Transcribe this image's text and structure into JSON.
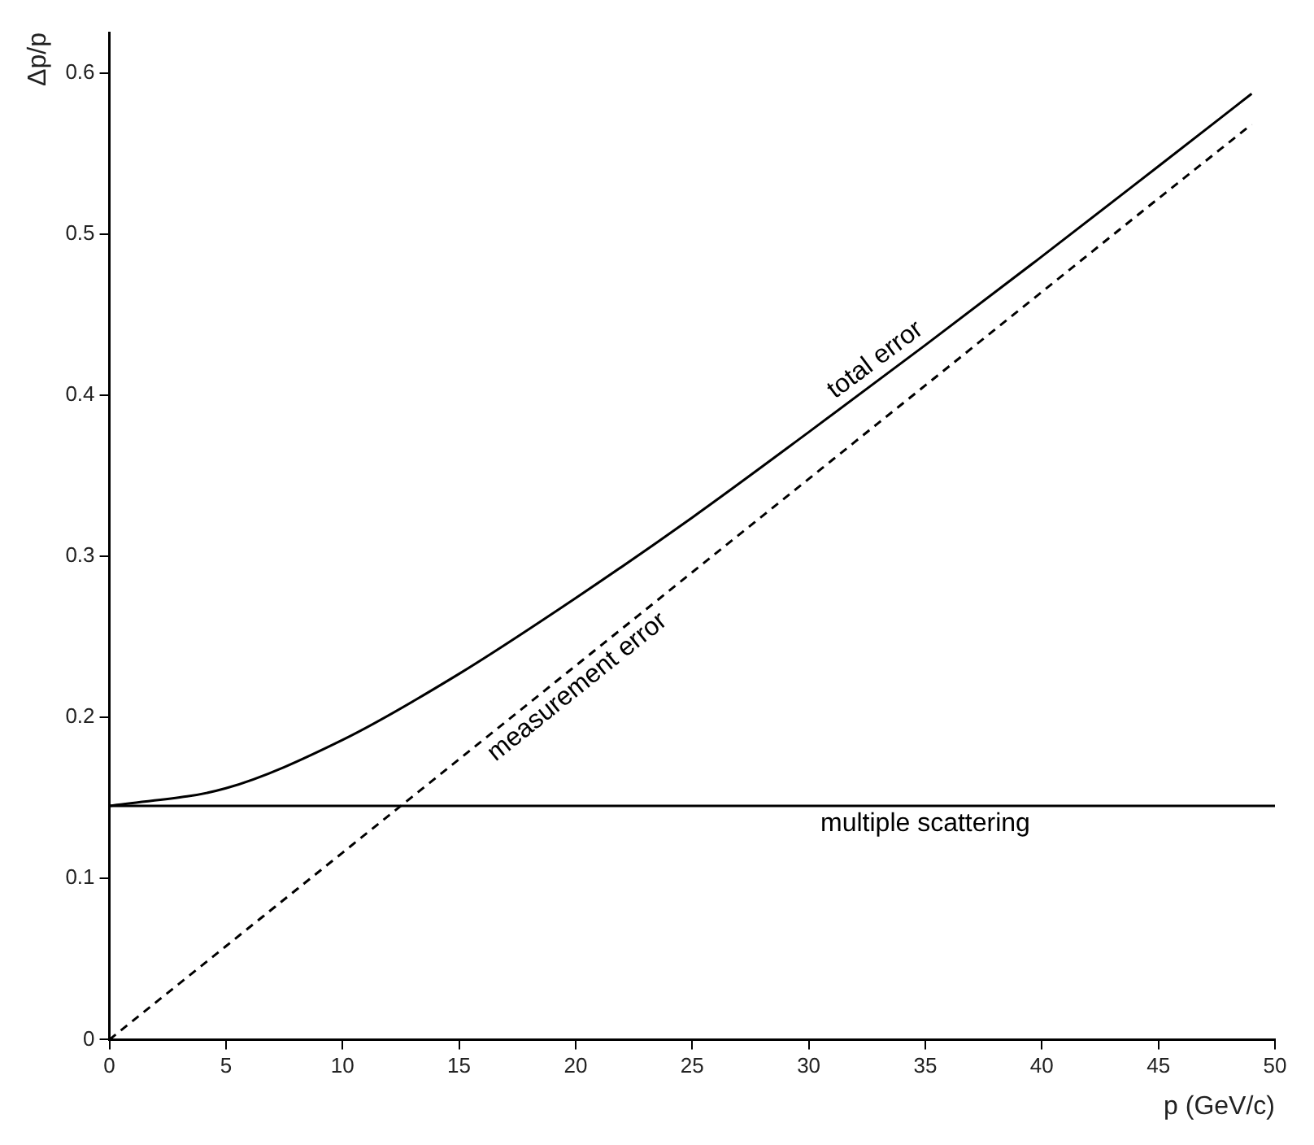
{
  "chart_data": {
    "type": "line",
    "xlabel": "p (GeV/c)",
    "ylabel": "Δp/p",
    "xlim": [
      0,
      50
    ],
    "xticks": [
      0,
      5,
      10,
      15,
      20,
      25,
      30,
      35,
      40,
      45,
      50
    ],
    "ylim": [
      0,
      0.625
    ],
    "yticks": [
      0,
      0.1,
      0.2,
      0.3,
      0.4,
      0.5,
      0.6
    ],
    "grid": false,
    "legend": false,
    "series": [
      {
        "name": "total error",
        "color": "#000000",
        "line_style": "solid",
        "x": [
          0,
          5,
          10,
          15,
          20,
          25,
          30,
          35,
          40,
          45,
          49
        ],
        "values": [
          0.145,
          0.156,
          0.186,
          0.227,
          0.274,
          0.324,
          0.377,
          0.431,
          0.486,
          0.542,
          0.587
        ]
      },
      {
        "name": "measurement error",
        "color": "#000000",
        "line_style": "dashed",
        "x": [
          0,
          5,
          10,
          15,
          20,
          25,
          30,
          35,
          40,
          45,
          49
        ],
        "values": [
          0,
          0.058,
          0.116,
          0.174,
          0.232,
          0.29,
          0.348,
          0.406,
          0.464,
          0.522,
          0.568
        ]
      },
      {
        "name": "multiple scattering",
        "color": "#000000",
        "line_style": "solid",
        "x": [
          0,
          50
        ],
        "values": [
          0.145,
          0.145
        ]
      }
    ]
  }
}
